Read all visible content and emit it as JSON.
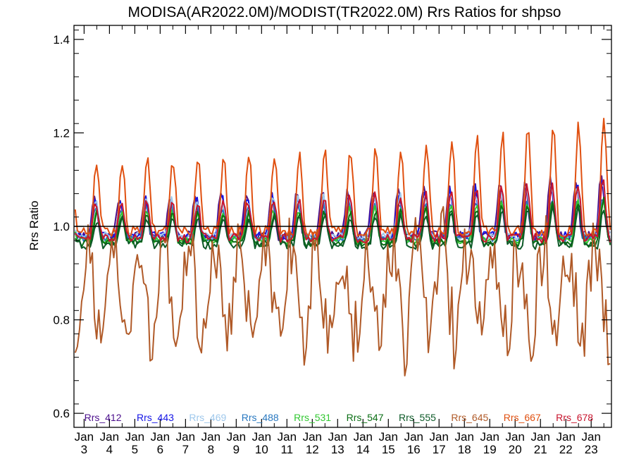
{
  "chart_data": {
    "type": "line",
    "title": "MODISA(AR2022.0M)/MODIST(TR2022.0M)  Rrs Ratios for shpso",
    "ylabel": "Rrs Ratio",
    "xlabel": "",
    "ylim": [
      0.57,
      1.43
    ],
    "xlim": [
      2.6,
      23.8
    ],
    "yticks": [
      0.6,
      0.8,
      1.0,
      1.2,
      1.4
    ],
    "ytick_labels": [
      "0.6",
      "0.8",
      "1.0",
      "1.2",
      "1.4"
    ],
    "xticks": [
      3,
      4,
      5,
      6,
      7,
      8,
      9,
      10,
      11,
      12,
      13,
      14,
      15,
      16,
      17,
      18,
      19,
      20,
      21,
      22,
      23
    ],
    "xtick_month": "Jan",
    "xtick_labels": [
      "3",
      "4",
      "5",
      "6",
      "7",
      "8",
      "9",
      "10",
      "11",
      "12",
      "13",
      "14",
      "15",
      "16",
      "17",
      "18",
      "19",
      "20",
      "21",
      "22",
      "23"
    ],
    "reference_line": 1.0,
    "grid": false,
    "legend_position": "bottom-inside",
    "series": [
      {
        "name": "Rrs_412",
        "color": "#4b0f8c",
        "amp": 0.085,
        "growth": 0.5,
        "base": 1.0,
        "phase": 0.15,
        "noise": 0.01
      },
      {
        "name": "Rrs_443",
        "color": "#1414e6",
        "amp": 0.08,
        "growth": 0.45,
        "base": 1.0,
        "phase": 0.12,
        "noise": 0.009
      },
      {
        "name": "Rrs_469",
        "color": "#9ec8ec",
        "amp": 0.075,
        "growth": 0.45,
        "base": 1.0,
        "phase": 0.1,
        "noise": 0.008
      },
      {
        "name": "Rrs_488",
        "color": "#2878c0",
        "amp": 0.065,
        "growth": 0.45,
        "base": 0.995,
        "phase": 0.1,
        "noise": 0.008
      },
      {
        "name": "Rrs_531",
        "color": "#32c832",
        "amp": 0.06,
        "growth": 0.5,
        "base": 0.99,
        "phase": 0.08,
        "noise": 0.008
      },
      {
        "name": "Rrs_547",
        "color": "#0a6e14",
        "amp": 0.06,
        "growth": 0.55,
        "base": 0.985,
        "phase": 0.06,
        "noise": 0.009
      },
      {
        "name": "Rrs_555",
        "color": "#0d5a28",
        "amp": 0.055,
        "growth": 0.5,
        "base": 0.98,
        "phase": 0.06,
        "noise": 0.009
      },
      {
        "name": "Rrs_645",
        "color": "#b05a28",
        "amp": -0.12,
        "growth": 0.4,
        "base": 0.86,
        "phase": 0.0,
        "noise": 0.05
      },
      {
        "name": "Rrs_667",
        "color": "#e05010",
        "amp": 0.15,
        "growth": 0.6,
        "base": 1.01,
        "phase": 0.05,
        "noise": 0.012
      },
      {
        "name": "Rrs_678",
        "color": "#c8142d",
        "amp": 0.075,
        "growth": 0.6,
        "base": 0.995,
        "phase": 0.08,
        "noise": 0.01
      }
    ]
  }
}
